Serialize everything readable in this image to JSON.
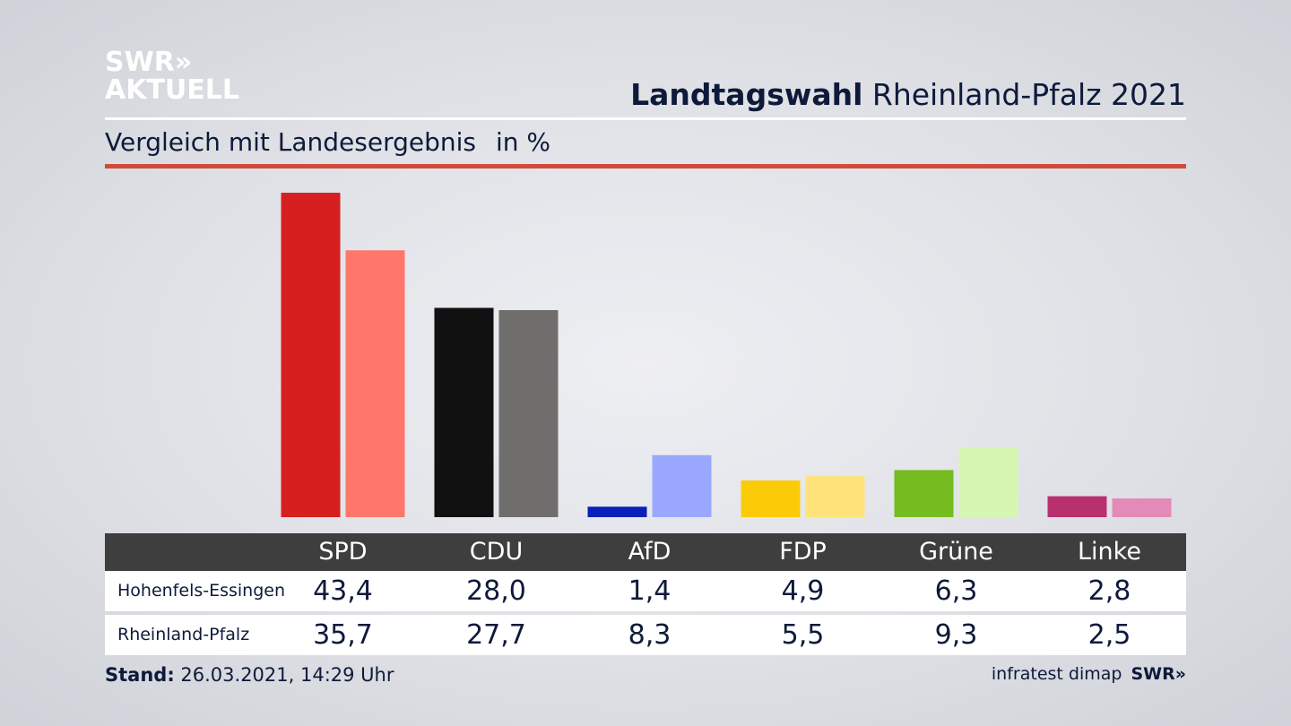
{
  "logo": {
    "line1": "SWR»",
    "line2": "AKTUELL"
  },
  "header": {
    "title_bold": "Landtagswahl",
    "title_rest": " Rheinland-Pfalz 2021",
    "subtitle": "Vergleich mit Landesergebnis",
    "unit": "in %"
  },
  "chart_data": {
    "type": "bar",
    "categories": [
      "SPD",
      "CDU",
      "AfD",
      "FDP",
      "Grüne",
      "Linke"
    ],
    "series": [
      {
        "name": "Hohenfels-Essingen",
        "values": [
          43.4,
          28.0,
          1.4,
          4.9,
          6.3,
          2.8
        ]
      },
      {
        "name": "Rheinland-Pfalz",
        "values": [
          35.7,
          27.7,
          8.3,
          5.5,
          9.3,
          2.5
        ]
      }
    ],
    "colors_local": [
      "#d61f1f",
      "#111111",
      "#0a20b8",
      "#fccb07",
      "#74bc1f",
      "#b9306f"
    ],
    "colors_state": [
      "#ff766b",
      "#6f6e6c",
      "#9aa9ff",
      "#fee37b",
      "#d5f7b2",
      "#e38ab8"
    ]
  },
  "table": {
    "headers": [
      "SPD",
      "CDU",
      "AfD",
      "FDP",
      "Grüne",
      "Linke"
    ],
    "rows": [
      {
        "label": "Hohenfels-Essingen",
        "values": [
          "43,4",
          "28,0",
          "1,4",
          "4,9",
          "6,3",
          "2,8"
        ]
      },
      {
        "label": "Rheinland-Pfalz",
        "values": [
          "35,7",
          "27,7",
          "8,3",
          "5,5",
          "9,3",
          "2,5"
        ]
      }
    ]
  },
  "footer": {
    "stand_label": "Stand:",
    "stand_value": " 26.03.2021, 14:29 Uhr",
    "source": "infratest dimap",
    "brand": "SWR»"
  }
}
